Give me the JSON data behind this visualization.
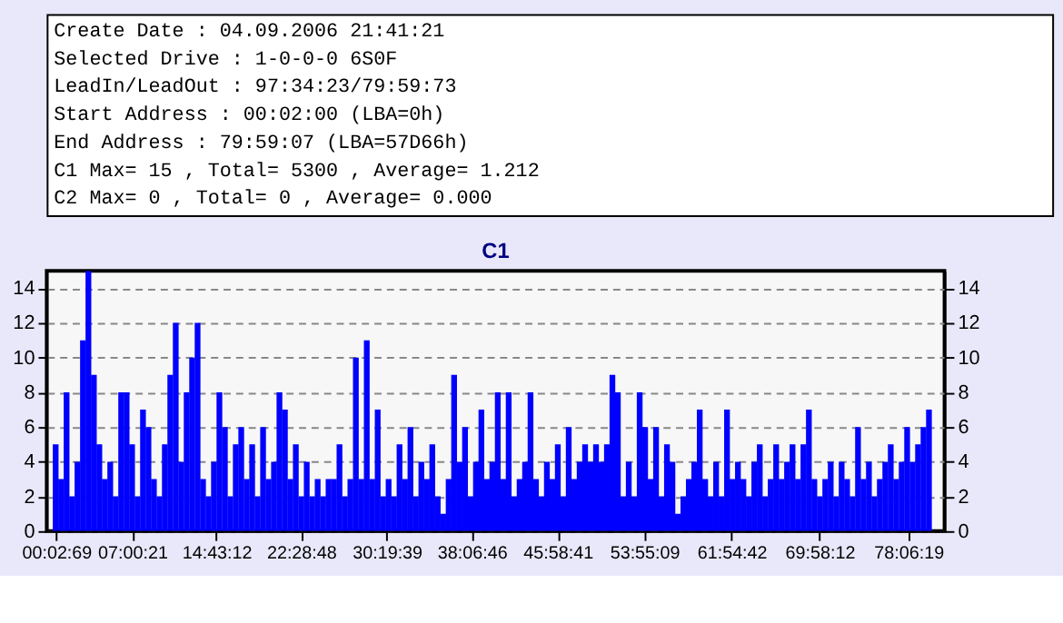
{
  "chart_data": [
    {
      "type": "other",
      "annotations": [
        "Create Date : 04.09.2006 21:41:21",
        "Selected Drive : 1-0-0-0 6S0F",
        "LeadIn/LeadOut : 97:34:23/79:59:73",
        "Start Address : 00:02:00 (LBA=0h)",
        "End Address : 79:59:07 (LBA=57D66h)",
        "C1 Max= 15 , Total= 5300 , Average= 1.212",
        "C2 Max= 0 , Total= 0 , Average= 0.000"
      ]
    },
    {
      "type": "bar",
      "title": "C1",
      "x": [
        0,
        0.5,
        1,
        1.5,
        2,
        2.5,
        3,
        3.5,
        4,
        4.5,
        5,
        5.5,
        6,
        6.5,
        7,
        7.5,
        8,
        8.5,
        9,
        9.5,
        10,
        10.5,
        11,
        11.5,
        12,
        12.5,
        13,
        13.5,
        14,
        14.5,
        15,
        15.5,
        16,
        16.5,
        17,
        17.5,
        18,
        18.5,
        19,
        19.5,
        20,
        20.5,
        21,
        21.5,
        22,
        22.5,
        23,
        23.5,
        24,
        24.5,
        25,
        25.5,
        26,
        26.5,
        27,
        27.5,
        28,
        28.5,
        29,
        29.5,
        30,
        30.5,
        31,
        31.5,
        32,
        32.5,
        33,
        33.5,
        34,
        34.5,
        35,
        35.5,
        36,
        36.5,
        37,
        37.5,
        38,
        38.5,
        39,
        39.5,
        40,
        40.5,
        41,
        41.5,
        42,
        42.5,
        43,
        43.5,
        44,
        44.5,
        45,
        45.5,
        46,
        46.5,
        47,
        47.5,
        48,
        48.5,
        49,
        49.5,
        50,
        50.5,
        51,
        51.5,
        52,
        52.5,
        53,
        53.5,
        54,
        54.5,
        55,
        55.5,
        56,
        56.5,
        57,
        57.5,
        58,
        58.5,
        59,
        59.5,
        60,
        60.5,
        61,
        61.5,
        62,
        62.5,
        63,
        63.5,
        64,
        64.5,
        65,
        65.5,
        66,
        66.5,
        67,
        67.5,
        68,
        68.5,
        69,
        69.5,
        70,
        70.5,
        71,
        71.5,
        72,
        72.5,
        73,
        73.5,
        74,
        74.5,
        75,
        75.5,
        76,
        76.5,
        77,
        77.5,
        78,
        78.5,
        79,
        79.5,
        80
      ],
      "series": [
        {
          "color": "#0000ff",
          "values": [
            5,
            3,
            8,
            2,
            4,
            11,
            15,
            9,
            5,
            3,
            4,
            2,
            8,
            8,
            5,
            2,
            7,
            6,
            3,
            2,
            5,
            9,
            12,
            4,
            8,
            10,
            12,
            3,
            2,
            4,
            8,
            6,
            2,
            5,
            6,
            3,
            5,
            2,
            6,
            3,
            4,
            8,
            7,
            3,
            5,
            2,
            4,
            2,
            3,
            2,
            3,
            3,
            5,
            2,
            3,
            10,
            3,
            11,
            3,
            7,
            2,
            3,
            2,
            5,
            3,
            6,
            2,
            4,
            3,
            5,
            2,
            1,
            3,
            9,
            4,
            6,
            2,
            4,
            7,
            3,
            4,
            8,
            3,
            8,
            2,
            3,
            4,
            8,
            3,
            2,
            4,
            3,
            5,
            2,
            6,
            3,
            4,
            5,
            4,
            5,
            4,
            5,
            9,
            8,
            2,
            4,
            2,
            8,
            6,
            3,
            6,
            2,
            5,
            4,
            1,
            2,
            3,
            4,
            7,
            3,
            2,
            4,
            2,
            7,
            3,
            4,
            3,
            2,
            4,
            5,
            2,
            3,
            5,
            3,
            4,
            5,
            3,
            5,
            7,
            3,
            2,
            3,
            4,
            2,
            4,
            3,
            2,
            6,
            3,
            4,
            2,
            3,
            4,
            5,
            3,
            4,
            6,
            4,
            5,
            6,
            7
          ]
        }
      ],
      "xlim": [
        0,
        80.6
      ],
      "xticks": [
        {
          "value": 0.0525,
          "label": "00:02:69"
        },
        {
          "value": 7.00583,
          "label": "07:00:21"
        },
        {
          "value": 14.72,
          "label": "14:43:12"
        },
        {
          "value": 22.48,
          "label": "22:28:48"
        },
        {
          "value": 30.3275,
          "label": "30:19:39"
        },
        {
          "value": 38.11278,
          "label": "38:06:46"
        },
        {
          "value": 45.97806,
          "label": "45:58:41"
        },
        {
          "value": 53.91917,
          "label": "53:55:09"
        },
        {
          "value": 61.91167,
          "label": "61:54:42"
        },
        {
          "value": 69.97,
          "label": "69:58:12"
        },
        {
          "value": 78.10528,
          "label": "78:06:19"
        }
      ],
      "ylim": [
        0,
        15
      ],
      "yticks": [
        0,
        2,
        4,
        6,
        8,
        10,
        12,
        14
      ],
      "y2lim": [
        0,
        15
      ],
      "y2ticks": [
        0,
        2,
        4,
        6,
        8,
        10,
        12,
        14
      ],
      "grid": "y"
    }
  ]
}
